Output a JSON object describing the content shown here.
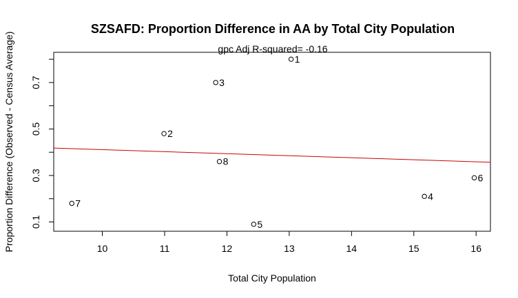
{
  "chart_data": {
    "type": "scatter",
    "title": "SZSAFD: Proportion Difference in AA by Total City Population",
    "subtitle": "gpc Adj R-squared= -0.16",
    "xlabel": "Total City Population",
    "ylabel": "Proportion Difference (Observed - Census Average)",
    "xlim": [
      9.22,
      16.23
    ],
    "ylim": [
      0.06,
      0.83
    ],
    "xticks": [
      10,
      11,
      12,
      13,
      14,
      15,
      16
    ],
    "yticks": [
      0.1,
      0.2,
      0.3,
      0.4,
      0.5,
      0.6,
      0.7,
      0.8
    ],
    "ytick_labels": [
      "0.1",
      "",
      "0.3",
      "",
      "0.5",
      "",
      "0.7",
      ""
    ],
    "points": [
      {
        "label": "1",
        "x": 13.03,
        "y": 0.8
      },
      {
        "label": "2",
        "x": 10.99,
        "y": 0.48
      },
      {
        "label": "3",
        "x": 11.82,
        "y": 0.7
      },
      {
        "label": "4",
        "x": 15.17,
        "y": 0.21
      },
      {
        "label": "5",
        "x": 12.43,
        "y": 0.09
      },
      {
        "label": "6",
        "x": 15.97,
        "y": 0.29
      },
      {
        "label": "7",
        "x": 9.51,
        "y": 0.18
      },
      {
        "label": "8",
        "x": 11.88,
        "y": 0.36
      }
    ],
    "regression_line": {
      "x": [
        9.22,
        16.23
      ],
      "y": [
        0.418,
        0.357
      ],
      "color": "#cc0000"
    },
    "point_color": "#000000",
    "grid": false,
    "legend": "none"
  }
}
